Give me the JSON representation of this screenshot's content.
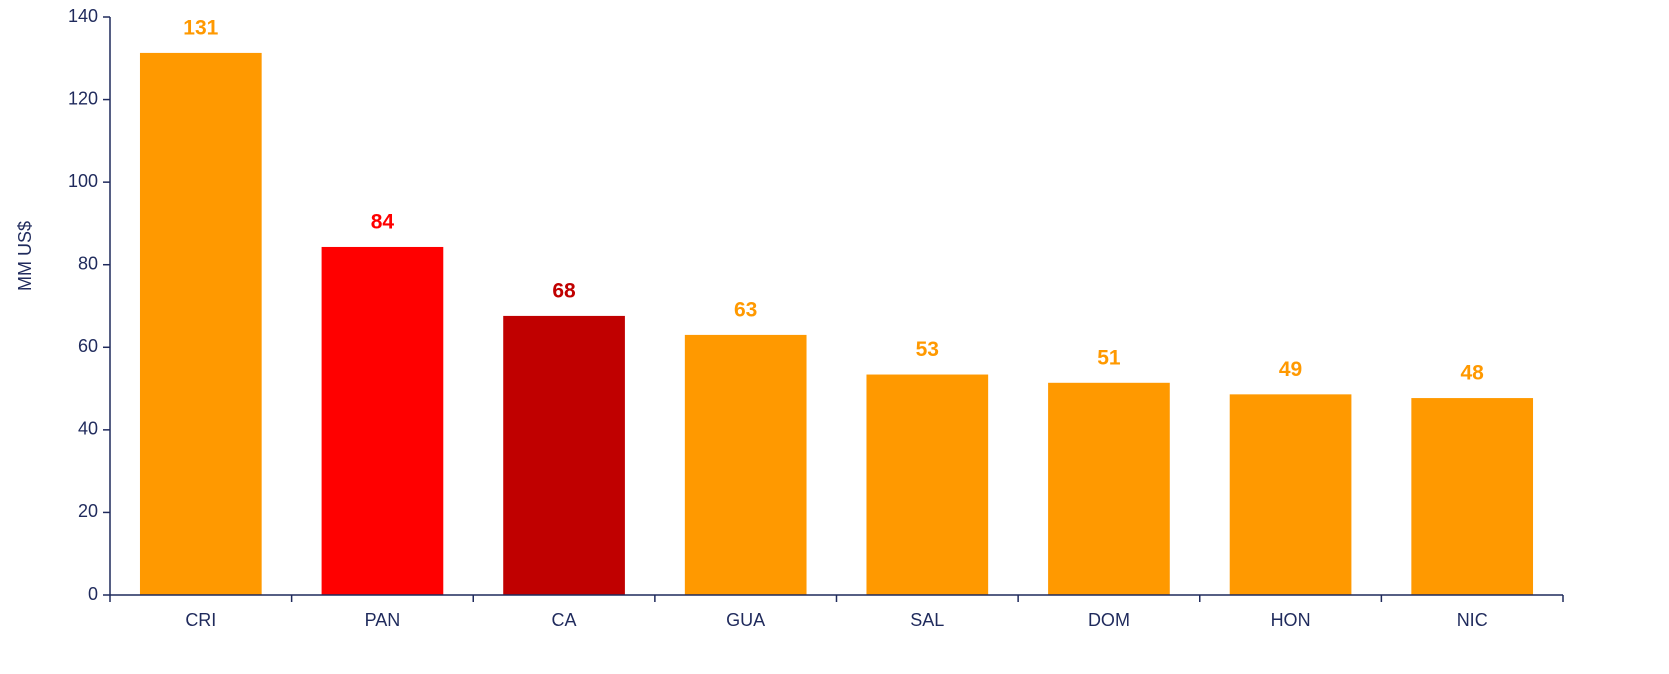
{
  "chart_data": {
    "type": "bar",
    "y_label": "MM US$",
    "categories": [
      "CRI",
      "PAN",
      "CA",
      "GUA",
      "SAL",
      "DOM",
      "HON",
      "NIC"
    ],
    "values": [
      131.3,
      84.3,
      67.6,
      63.0,
      53.4,
      51.4,
      48.6,
      47.7
    ],
    "value_labels": [
      "131",
      "84",
      "68",
      "63",
      "53",
      "51",
      "49",
      "48"
    ],
    "colors": [
      "#ff9900",
      "#ff0000",
      "#c00000",
      "#ff9900",
      "#ff9900",
      "#ff9900",
      "#ff9900",
      "#ff9900"
    ],
    "ylim": [
      0,
      140
    ],
    "yticks": [
      0,
      20,
      40,
      60,
      80,
      100,
      120,
      140
    ],
    "grid": false
  }
}
